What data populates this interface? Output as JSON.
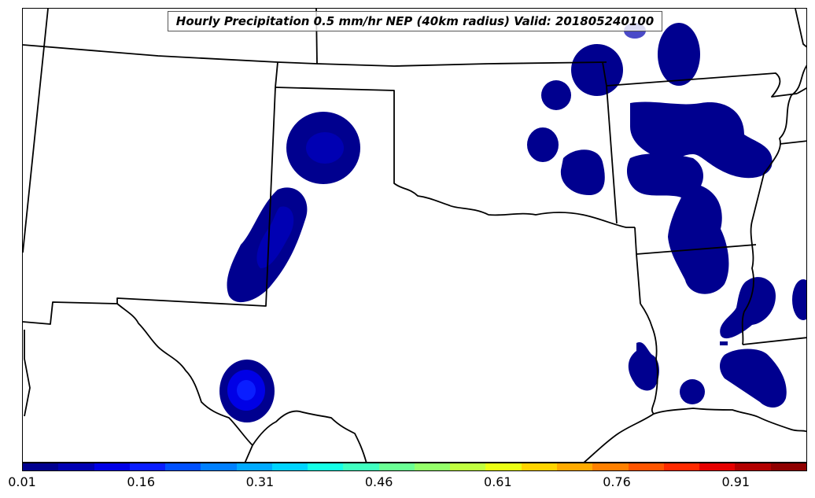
{
  "title": "Hourly Precipitation 0.5 mm/hr NEP (40km radius) Valid: 201805240100",
  "colorbar": {
    "min": 0.01,
    "max": 1.0,
    "step": 0.05,
    "colors": [
      "#00008f",
      "#0000b3",
      "#0000e6",
      "#0a1eff",
      "#0050ff",
      "#0080ff",
      "#00aaff",
      "#00d4ff",
      "#14ffe6",
      "#40ffc0",
      "#6aff94",
      "#94ff6a",
      "#c0ff40",
      "#eaff14",
      "#ffd400",
      "#ffaa00",
      "#ff8000",
      "#ff5500",
      "#ff2a00",
      "#e60000",
      "#b30000",
      "#8f0000"
    ],
    "tick_labels": [
      "0.01",
      "0.16",
      "0.31",
      "0.46",
      "0.61",
      "0.76",
      "0.91"
    ],
    "tick_values": [
      0.01,
      0.16,
      0.31,
      0.46,
      0.61,
      0.76,
      0.91
    ]
  },
  "map": {
    "region": "Southern Plains, United States",
    "fill_colors": {
      "low": "#00008f",
      "mid": "#0000b3",
      "high": "#0a1eff"
    }
  }
}
